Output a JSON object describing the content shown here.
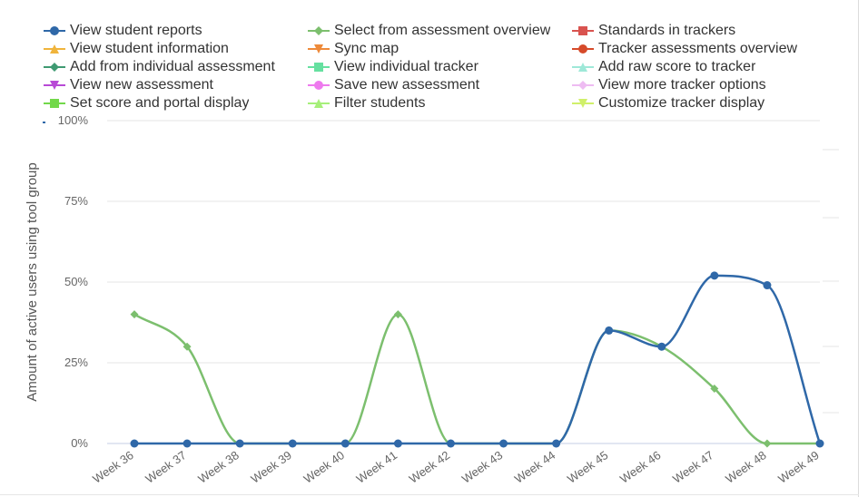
{
  "chart_data": {
    "type": "line",
    "title": "",
    "xlabel": "",
    "ylabel": "Amount of active users using tool group",
    "ylim": [
      0,
      100
    ],
    "y_ticks": [
      "100%",
      "75%",
      "50%",
      "25%",
      "0%"
    ],
    "y_tick_values": [
      100,
      75,
      50,
      25,
      0
    ],
    "categories": [
      "Week 36",
      "Week 37",
      "Week 38",
      "Week 39",
      "Week 40",
      "Week 41",
      "Week 42",
      "Week 43",
      "Week 44",
      "Week 45",
      "Week 46",
      "Week 47",
      "Week 48",
      "Week 49"
    ],
    "legend_position": "top",
    "series": [
      {
        "name": "View student reports",
        "color": "#2f68a8",
        "marker": "circle",
        "values": [
          0,
          0,
          0,
          0,
          0,
          0,
          0,
          0,
          0,
          35,
          30,
          52,
          49,
          0
        ]
      },
      {
        "name": "Select from assessment overview",
        "color": "#7cbf6e",
        "marker": "diamond",
        "values": [
          40,
          30,
          0,
          0,
          0,
          40,
          0,
          0,
          0,
          35,
          30,
          17,
          0,
          0
        ]
      },
      {
        "name": "Standards in trackers",
        "color": "#d9534f",
        "marker": "square",
        "values": null
      },
      {
        "name": "View student information",
        "color": "#f0b43c",
        "marker": "triangle",
        "values": null
      },
      {
        "name": "Sync map",
        "color": "#ee8a3a",
        "marker": "triangle-down",
        "values": null
      },
      {
        "name": "Tracker assessments overview",
        "color": "#d64a2a",
        "marker": "circle",
        "values": null
      },
      {
        "name": "Add from individual assessment",
        "color": "#3f9a72",
        "marker": "diamond",
        "values": null
      },
      {
        "name": "View individual tracker",
        "color": "#66e0a0",
        "marker": "square",
        "values": null
      },
      {
        "name": "Add raw score to tracker",
        "color": "#9ee8d8",
        "marker": "triangle",
        "values": null
      },
      {
        "name": "View new assessment",
        "color": "#b84ad6",
        "marker": "triangle-down",
        "values": null
      },
      {
        "name": "Save new assessment",
        "color": "#ee7aee",
        "marker": "circle",
        "values": null
      },
      {
        "name": "View more tracker options",
        "color": "#eebcf2",
        "marker": "diamond",
        "values": null
      },
      {
        "name": "Set score and portal display",
        "color": "#72d84a",
        "marker": "square",
        "values": null
      },
      {
        "name": "Filter students",
        "color": "#a6ef7a",
        "marker": "triangle",
        "values": null
      },
      {
        "name": "Customize tracker display",
        "color": "#d0f06a",
        "marker": "triangle-down",
        "values": null
      }
    ]
  }
}
